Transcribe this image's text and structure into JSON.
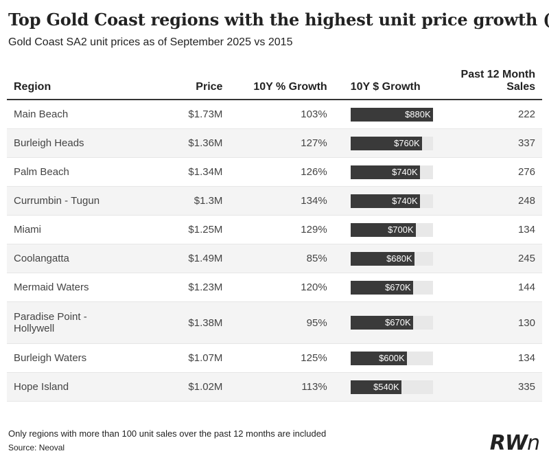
{
  "chart_data": {
    "type": "table",
    "title": "Top Gold Coast regions with the highest unit price growth ($)",
    "subtitle": "Gold Coast SA2 unit prices as of September 2025 vs 2015",
    "columns": [
      "Region",
      "Price",
      "10Y % Growth",
      "10Y $ Growth",
      "Past 12 Month Sales"
    ],
    "bar_max": 880,
    "rows": [
      {
        "region": "Main Beach",
        "price": "$1.73M",
        "pct_growth": "103%",
        "dollar_growth": 880,
        "dollar_growth_label": "$880K",
        "sales": "222"
      },
      {
        "region": "Burleigh Heads",
        "price": "$1.36M",
        "pct_growth": "127%",
        "dollar_growth": 760,
        "dollar_growth_label": "$760K",
        "sales": "337"
      },
      {
        "region": "Palm Beach",
        "price": "$1.34M",
        "pct_growth": "126%",
        "dollar_growth": 740,
        "dollar_growth_label": "$740K",
        "sales": "276"
      },
      {
        "region": "Currumbin - Tugun",
        "price": "$1.3M",
        "pct_growth": "134%",
        "dollar_growth": 740,
        "dollar_growth_label": "$740K",
        "sales": "248"
      },
      {
        "region": "Miami",
        "price": "$1.25M",
        "pct_growth": "129%",
        "dollar_growth": 700,
        "dollar_growth_label": "$700K",
        "sales": "134"
      },
      {
        "region": "Coolangatta",
        "price": "$1.49M",
        "pct_growth": "85%",
        "dollar_growth": 680,
        "dollar_growth_label": "$680K",
        "sales": "245"
      },
      {
        "region": "Mermaid Waters",
        "price": "$1.23M",
        "pct_growth": "120%",
        "dollar_growth": 670,
        "dollar_growth_label": "$670K",
        "sales": "144"
      },
      {
        "region": "Paradise Point - Hollywell",
        "price": "$1.38M",
        "pct_growth": "95%",
        "dollar_growth": 670,
        "dollar_growth_label": "$670K",
        "sales": "130"
      },
      {
        "region": "Burleigh Waters",
        "price": "$1.07M",
        "pct_growth": "125%",
        "dollar_growth": 600,
        "dollar_growth_label": "$600K",
        "sales": "134"
      },
      {
        "region": "Hope Island",
        "price": "$1.02M",
        "pct_growth": "113%",
        "dollar_growth": 540,
        "dollar_growth_label": "$540K",
        "sales": "335"
      }
    ],
    "bar_color": "#3a3a3a",
    "bar_track_color": "#e8e8e8"
  },
  "footer": {
    "note": "Only regions with more than 100 unit sales over the past 12 months are included",
    "source": "Source: Neoval",
    "logo_text": "RWn"
  }
}
